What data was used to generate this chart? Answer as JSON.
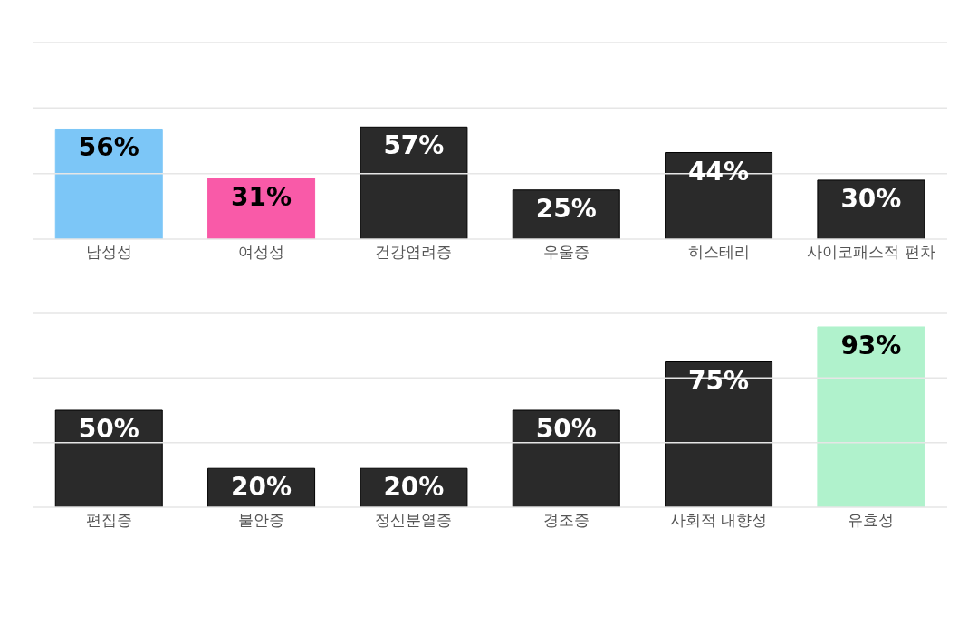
{
  "chart_data": [
    {
      "type": "bar",
      "categories": [
        "남성성",
        "여성성",
        "건강염려증",
        "우울증",
        "히스테리",
        "사이코패스적 편차"
      ],
      "values": [
        56,
        31,
        57,
        25,
        44,
        30
      ],
      "value_labels": [
        "56%",
        "31%",
        "57%",
        "25%",
        "44%",
        "30%"
      ],
      "colors": [
        "#7cc6f7",
        "#f95aa8",
        "#2a2a2a",
        "#2a2a2a",
        "#2a2a2a",
        "#2a2a2a"
      ],
      "ylim": [
        0,
        100
      ],
      "yticks": [
        {
          "value": 0,
          "label": null
        },
        {
          "value": 33.33,
          "label": null
        },
        {
          "value": 66.67,
          "label": null
        },
        {
          "value": 100,
          "label": null
        }
      ],
      "grid": "y",
      "tick_labels": "x"
    },
    {
      "type": "bar",
      "categories": [
        "편집증",
        "불안증",
        "정신분열증",
        "경조증",
        "사회적 내향성",
        "유효성"
      ],
      "values": [
        50,
        20,
        20,
        50,
        75,
        93
      ],
      "value_labels": [
        "50%",
        "20%",
        "20%",
        "50%",
        "75%",
        "93%"
      ],
      "colors": [
        "#2a2a2a",
        "#2a2a2a",
        "#2a2a2a",
        "#2a2a2a",
        "#2a2a2a",
        "#b0f2cc"
      ],
      "ylim": [
        0,
        100
      ],
      "yticks": [
        {
          "value": 0,
          "label": null
        },
        {
          "value": 33.33,
          "label": null
        },
        {
          "value": 66.67,
          "label": null
        },
        {
          "value": 100,
          "label": null
        }
      ],
      "grid": "y",
      "tick_labels": "x"
    }
  ]
}
